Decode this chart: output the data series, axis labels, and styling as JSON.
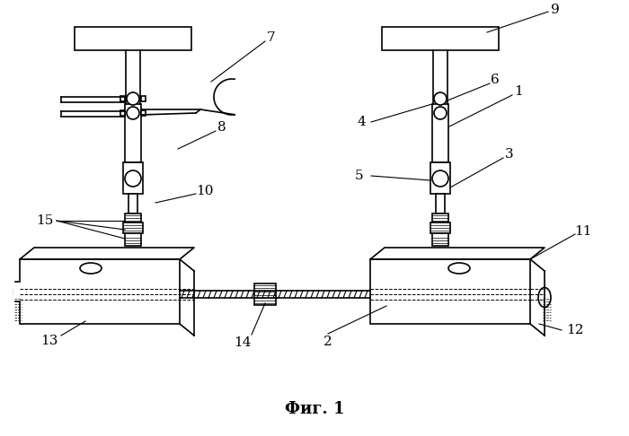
{
  "title": "Фиг. 1",
  "bg_color": "#ffffff",
  "line_color": "#000000",
  "fig_width": 7.0,
  "fig_height": 4.86,
  "dpi": 100
}
